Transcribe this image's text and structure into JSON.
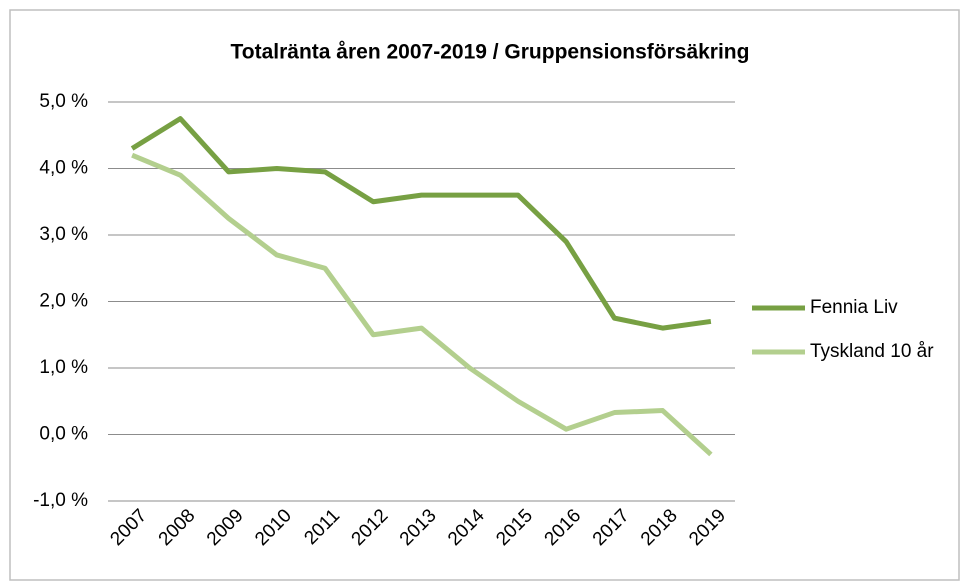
{
  "chart_data": {
    "type": "line",
    "title": "Totalränta åren 2007-2019 / Gruppensionsförsäkring",
    "categories": [
      "2007",
      "2008",
      "2009",
      "2010",
      "2011",
      "2012",
      "2013",
      "2014",
      "2015",
      "2016",
      "2017",
      "2018",
      "2019"
    ],
    "series": [
      {
        "name": "Fennia Liv",
        "color": "#77a043",
        "values": [
          4.3,
          4.75,
          3.95,
          4.0,
          3.95,
          3.5,
          3.6,
          3.6,
          3.6,
          2.9,
          1.75,
          1.6,
          1.7
        ]
      },
      {
        "name": "Tyskland 10 år",
        "color": "#b3cf8e",
        "values": [
          4.2,
          3.9,
          3.25,
          2.7,
          2.5,
          1.5,
          1.6,
          1.0,
          0.5,
          0.08,
          0.33,
          0.36,
          -0.3
        ]
      }
    ],
    "ylim": [
      -1,
      5
    ],
    "yticks": [
      {
        "value": -1,
        "label": "-1,0 %"
      },
      {
        "value": 0,
        "label": "0,0 %"
      },
      {
        "value": 1,
        "label": "1,0 %"
      },
      {
        "value": 2,
        "label": "2,0 %"
      },
      {
        "value": 3,
        "label": "3,0 %"
      },
      {
        "value": 4,
        "label": "4,0 %"
      },
      {
        "value": 5,
        "label": "5,0 %"
      }
    ],
    "grid": true,
    "legend": "right"
  }
}
